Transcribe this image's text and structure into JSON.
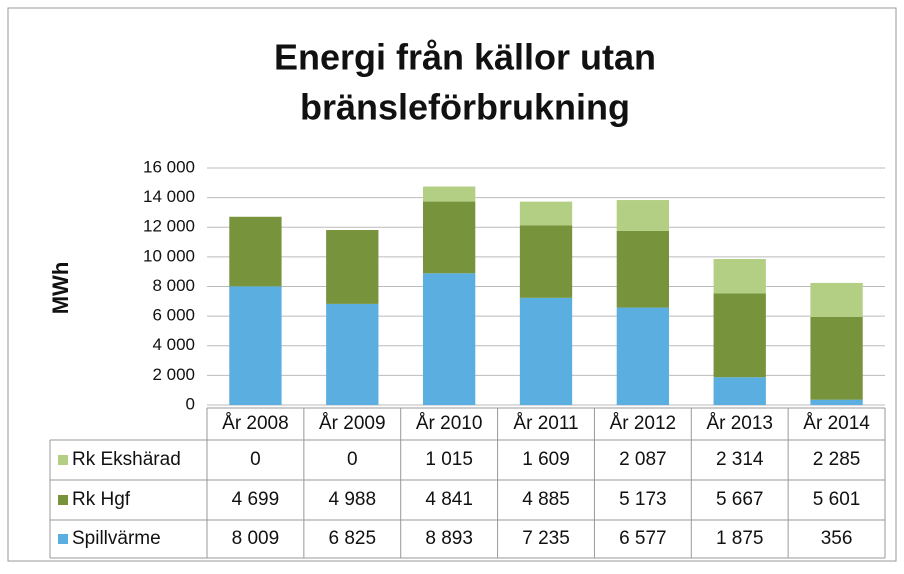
{
  "chart_data": {
    "type": "bar",
    "stacked": true,
    "title": "Energi från källor utan bränsleförbrukning",
    "ylabel": "MWh",
    "categories": [
      "År 2008",
      "År 2009",
      "År 2010",
      "År 2011",
      "År 2012",
      "År 2013",
      "År 2014"
    ],
    "series": [
      {
        "name": "Spillvärme",
        "color": "#5aaee0",
        "values": [
          8009,
          6825,
          8893,
          7235,
          6577,
          1875,
          356
        ],
        "value_labels": [
          "8 009",
          "6 825",
          "8 893",
          "7 235",
          "6 577",
          "1 875",
          "356"
        ]
      },
      {
        "name": "Rk Hgf",
        "color": "#77933c",
        "values": [
          4699,
          4988,
          4841,
          4885,
          5173,
          5667,
          5601
        ],
        "value_labels": [
          "4 699",
          "4 988",
          "4 841",
          "4 885",
          "5 173",
          "5 667",
          "5 601"
        ]
      },
      {
        "name": "Rk Ekshärad",
        "color": "#b3cf84",
        "values": [
          0,
          0,
          1015,
          1609,
          2087,
          2314,
          2285
        ],
        "value_labels": [
          "0",
          "0",
          "1 015",
          "1 609",
          "2 087",
          "2 314",
          "2 285"
        ]
      }
    ],
    "ylim": [
      0,
      16000
    ],
    "yticks": [
      0,
      {
        "value": 2000,
        "label": "2 000"
      },
      {
        "value": 4000,
        "label": "4 000"
      },
      {
        "value": 6000,
        "label": "6 000"
      },
      {
        "value": 8000,
        "label": "8 000"
      },
      {
        "value": 10000,
        "label": "10 000"
      },
      {
        "value": 12000,
        "label": "12 000"
      },
      {
        "value": 14000,
        "label": "14 000"
      },
      {
        "value": 16000,
        "label": "16 000"
      }
    ],
    "grid": true
  }
}
